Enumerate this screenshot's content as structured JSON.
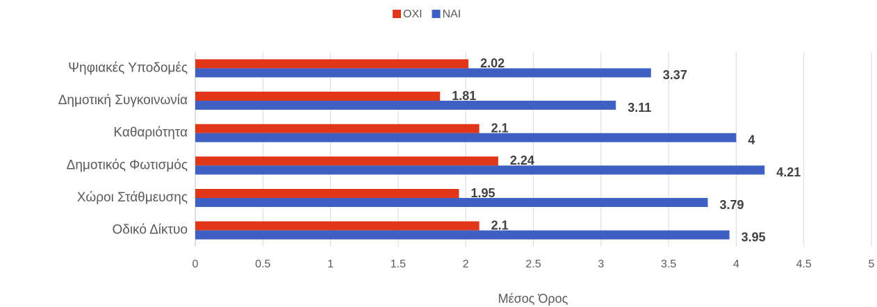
{
  "chart_data": {
    "type": "bar",
    "orientation": "horizontal",
    "x_label": "Μέσος Όρος",
    "categories": [
      "Ψηφιακές Υποδομές",
      "Δημοτική Συγκοινωνία",
      "Καθαριότητα",
      "Δημοτικός Φωτισμός",
      "Χώροι Στάθμευσης",
      "Οδικό Δίκτυο"
    ],
    "series": [
      {
        "name": "ΟΧΙ",
        "color": "#e0361a",
        "values": [
          2.02,
          1.81,
          2.1,
          2.24,
          1.95,
          2.1
        ]
      },
      {
        "name": "ΝΑΙ",
        "color": "#3f5fc2",
        "values": [
          3.37,
          3.11,
          4,
          4.21,
          3.79,
          3.95
        ]
      }
    ],
    "xlim": [
      0,
      5
    ],
    "xticks": [
      0,
      0.5,
      1,
      1.5,
      2,
      2.5,
      3,
      3.5,
      4,
      4.5,
      5
    ],
    "grid": true,
    "legend": "top"
  }
}
